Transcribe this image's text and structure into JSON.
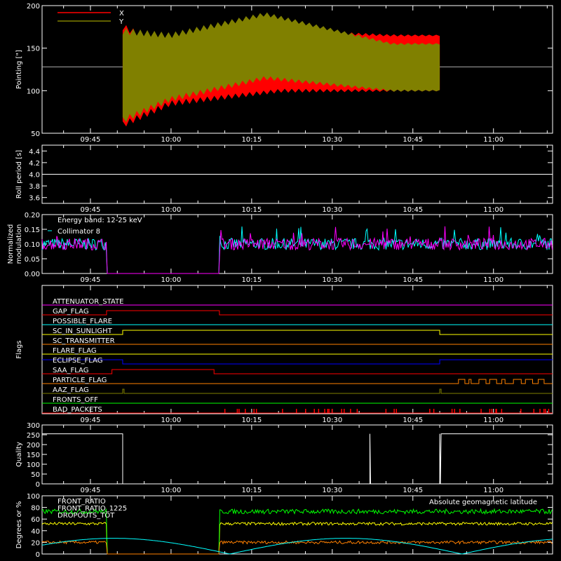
{
  "chart_data": [
    {
      "type": "line",
      "ylabel": "Pointing [\"]",
      "ylim": [
        50,
        200
      ],
      "yticks": [
        50,
        100,
        150,
        200
      ],
      "xtick_labels": [
        "09:45",
        "10:00",
        "10:15",
        "10:30",
        "10:45",
        "11:00"
      ],
      "series": [
        {
          "name": "X",
          "color": "#ff0000",
          "start": "09:51",
          "end": "10:50",
          "envelope": {
            "t": [
              0,
              0.15,
              0.5,
              0.85,
              1
            ],
            "hi": [
              175,
              150,
              170,
              165,
              165
            ],
            "lo": [
              60,
              85,
              100,
              100,
              100
            ]
          }
        },
        {
          "name": "Y",
          "color": "#808000",
          "start": "09:51",
          "end": "10:50",
          "envelope": {
            "t": [
              0,
              0.15,
              0.45,
              0.85,
              1
            ],
            "hi": [
              170,
              165,
              190,
              155,
              155
            ],
            "lo": [
              65,
              90,
              115,
              100,
              100
            ]
          }
        }
      ],
      "reference_line": 128
    },
    {
      "type": "line",
      "ylabel": "Roll period [s]",
      "ylim": [
        3.5,
        4.5
      ],
      "yticks": [
        "3.6",
        "3.8",
        "4.0",
        "4.2",
        "4.4"
      ],
      "xtick_labels": [
        "09:45",
        "10:00",
        "10:15",
        "10:30",
        "10:45",
        "11:00"
      ],
      "value": 4.0
    },
    {
      "type": "line",
      "ylabel": "Normalized modulation",
      "ylabel_lines": [
        "Normalized",
        "modulation"
      ],
      "ylim": [
        0,
        0.2
      ],
      "yticks": [
        "0.00",
        "0.05",
        "0.10",
        "0.15",
        "0.20"
      ],
      "xtick_labels": [
        "09:45",
        "10:00",
        "10:15",
        "10:30",
        "10:45",
        "11:00"
      ],
      "annotation": "Energy band: 12-25 keV",
      "series": [
        {
          "name": "Collimator 8",
          "color": "#00ffff"
        },
        {
          "name": "",
          "color": "#ff00ff"
        }
      ],
      "gap": [
        "09:48",
        "10:09"
      ],
      "level": 0.1
    },
    {
      "type": "table",
      "ylabel": "Flags",
      "xtick_labels": [
        "09:45",
        "10:00",
        "10:15",
        "10:30",
        "10:45",
        "11:00"
      ],
      "flags": [
        {
          "name": "ATTENUATOR_STATE",
          "color": "#ff00ff"
        },
        {
          "name": "GAP_FLAG",
          "color": "#ff0000"
        },
        {
          "name": "POSSIBLE_FLARE",
          "color": "#00ffff"
        },
        {
          "name": "SC_IN_SUNLIGHT",
          "color": "#ffff00"
        },
        {
          "name": "SC_TRANSMITTER",
          "color": "#ff8000"
        },
        {
          "name": "FLARE_FLAG",
          "color": "#ffff00"
        },
        {
          "name": "ECLIPSE_FLAG",
          "color": "#0000ff"
        },
        {
          "name": "SAA_FLAG",
          "color": "#ff0000"
        },
        {
          "name": "PARTICLE_FLAG",
          "color": "#ff8000"
        },
        {
          "name": "AAZ_FLAG",
          "color": "#808000"
        },
        {
          "name": "FRONTS_OFF",
          "color": "#00ff00"
        },
        {
          "name": "BAD_PACKETS",
          "color": "#ff0000"
        }
      ]
    },
    {
      "type": "line",
      "ylabel": "Quality",
      "ylim": [
        0,
        300
      ],
      "yticks": [
        0,
        50,
        100,
        150,
        200,
        250,
        300
      ],
      "xtick_labels": [
        "09:45",
        "10:00",
        "10:15",
        "10:30",
        "10:45",
        "11:00"
      ],
      "level": 255
    },
    {
      "type": "line",
      "ylabel": "Degrees or %",
      "ylim": [
        0,
        100
      ],
      "yticks": [
        0,
        20,
        40,
        60,
        80,
        100
      ],
      "series": [
        {
          "name": "FRONT_RATIO",
          "color": "#ffff00",
          "level": 52
        },
        {
          "name": "FRONT_RATIO_1225",
          "color": "#00ff00",
          "level": 73
        },
        {
          "name": "DROPOUTS_TOT",
          "color": "#ff8000",
          "level": 20
        }
      ],
      "annotation": "Absolute geomagnetic latitude",
      "annotation_color": "#00ffff"
    }
  ]
}
